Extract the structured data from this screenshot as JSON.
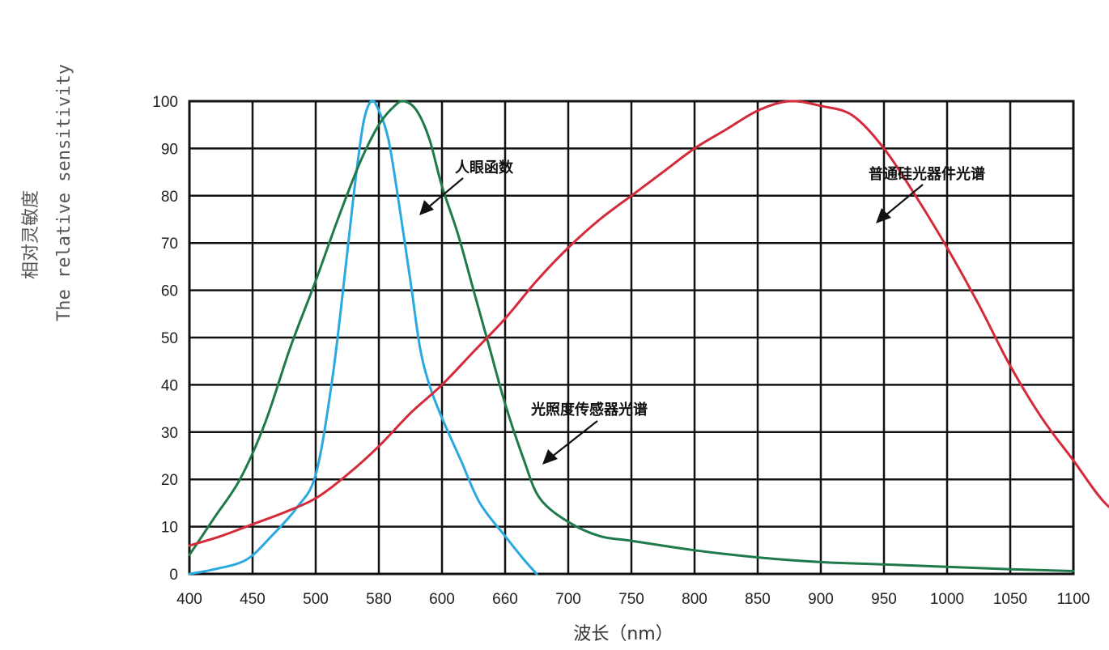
{
  "chart_data": {
    "type": "line",
    "title": "",
    "ylabel_cn": "相对灵敏度",
    "ylabel_en": "The relative sensitivity",
    "xlabel": "波长（nm）",
    "x_ticks": [
      "400",
      "450",
      "500",
      "580",
      "600",
      "660",
      "700",
      "750",
      "800",
      "850",
      "900",
      "950",
      "1000",
      "1050",
      "1100"
    ],
    "y_ticks": [
      "0",
      "10",
      "20",
      "30",
      "40",
      "50",
      "60",
      "70",
      "80",
      "90",
      "100"
    ],
    "ylim": [
      0,
      100
    ],
    "grid": true,
    "series": [
      {
        "name": "人眼函数",
        "color": "#29a9e0",
        "points": [
          [
            0,
            0
          ],
          [
            0.4,
            1
          ],
          [
            0.9,
            3
          ],
          [
            1.3,
            8
          ],
          [
            1.7,
            14
          ],
          [
            2.0,
            21
          ],
          [
            2.25,
            40
          ],
          [
            2.45,
            62
          ],
          [
            2.6,
            80
          ],
          [
            2.75,
            95
          ],
          [
            2.88,
            100
          ],
          [
            3.0,
            98
          ],
          [
            3.15,
            92
          ],
          [
            3.3,
            80
          ],
          [
            3.5,
            62
          ],
          [
            3.65,
            48
          ],
          [
            3.8,
            40
          ],
          [
            4.0,
            33
          ],
          [
            4.3,
            24
          ],
          [
            4.6,
            15
          ],
          [
            5.0,
            8
          ],
          [
            5.3,
            3
          ],
          [
            5.5,
            0
          ]
        ]
      },
      {
        "name": "光照度传感器光谱",
        "color": "#1f7a4a",
        "points": [
          [
            0,
            4
          ],
          [
            0.4,
            12
          ],
          [
            0.8,
            20
          ],
          [
            1.2,
            32
          ],
          [
            1.6,
            48
          ],
          [
            2.0,
            62
          ],
          [
            2.35,
            75
          ],
          [
            2.7,
            87
          ],
          [
            3.0,
            95
          ],
          [
            3.25,
            99
          ],
          [
            3.4,
            100
          ],
          [
            3.6,
            98
          ],
          [
            3.8,
            92
          ],
          [
            4.0,
            82
          ],
          [
            4.25,
            72
          ],
          [
            4.5,
            60
          ],
          [
            4.75,
            48
          ],
          [
            5.0,
            36
          ],
          [
            5.3,
            24
          ],
          [
            5.55,
            16
          ],
          [
            6.0,
            11
          ],
          [
            6.5,
            8
          ],
          [
            7.0,
            7
          ],
          [
            8.0,
            5
          ],
          [
            9.0,
            3.5
          ],
          [
            10.0,
            2.5
          ],
          [
            11.0,
            2
          ],
          [
            12.0,
            1.5
          ],
          [
            13.0,
            1
          ],
          [
            14.0,
            0.6
          ]
        ]
      },
      {
        "name": "普通硅光器件光谱",
        "color": "#d42a3a",
        "points": [
          [
            0,
            6
          ],
          [
            0.5,
            8
          ],
          [
            1.0,
            10.5
          ],
          [
            1.5,
            13
          ],
          [
            2.0,
            16
          ],
          [
            2.5,
            21
          ],
          [
            3.0,
            27
          ],
          [
            3.5,
            34
          ],
          [
            4.0,
            40
          ],
          [
            4.5,
            47
          ],
          [
            5.0,
            54
          ],
          [
            5.5,
            62
          ],
          [
            6.0,
            69
          ],
          [
            6.5,
            75
          ],
          [
            7.0,
            80
          ],
          [
            7.5,
            85
          ],
          [
            8.0,
            90
          ],
          [
            8.5,
            94
          ],
          [
            9.0,
            98
          ],
          [
            9.5,
            100
          ],
          [
            10.0,
            99
          ],
          [
            10.5,
            97
          ],
          [
            11.0,
            90
          ],
          [
            11.5,
            80
          ],
          [
            12.0,
            69
          ],
          [
            12.5,
            57
          ],
          [
            13.0,
            44
          ],
          [
            13.5,
            33
          ],
          [
            14.0,
            24
          ],
          [
            14.5,
            15
          ],
          [
            15.0,
            10
          ]
        ]
      }
    ],
    "annotations": [
      {
        "text": "人眼函数",
        "target_series": 0
      },
      {
        "text": "普通硅光器件光谱",
        "target_series": 2
      },
      {
        "text": "光照度传感器光谱",
        "target_series": 1
      }
    ]
  }
}
